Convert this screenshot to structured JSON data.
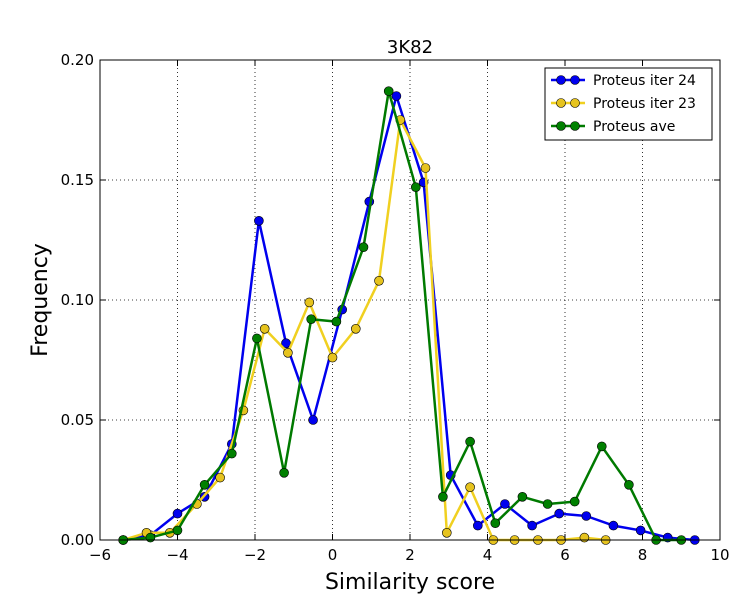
{
  "chart_data": {
    "type": "line",
    "title": "3K82",
    "xlabel": "Similarity score",
    "ylabel": "Frequency",
    "xlim": [
      -6,
      10
    ],
    "ylim": [
      0,
      0.2
    ],
    "xticks": [
      -6,
      -4,
      -2,
      0,
      2,
      4,
      6,
      8,
      10
    ],
    "xtick_labels": [
      "−6",
      "−4",
      "−2",
      "0",
      "2",
      "4",
      "6",
      "8",
      "10"
    ],
    "yticks": [
      0,
      0.05,
      0.1,
      0.15,
      0.2
    ],
    "ytick_labels": [
      "0.00",
      "0.05",
      "0.10",
      "0.15",
      "0.20"
    ],
    "grid": true,
    "legend_position": "top-right",
    "series": [
      {
        "name": "Proteus iter 24",
        "color": "#0000ee",
        "marker_color": "#0000ee",
        "x": [
          -5.4,
          -4.7,
          -4.0,
          -3.3,
          -2.6,
          -1.9,
          -1.2,
          -0.5,
          0.25,
          0.95,
          1.65,
          2.35,
          3.05,
          3.75,
          4.45,
          5.15,
          5.85,
          6.55,
          7.25,
          7.95,
          8.65,
          9.35
        ],
        "y": [
          0.0,
          0.002,
          0.011,
          0.018,
          0.04,
          0.133,
          0.082,
          0.05,
          0.096,
          0.141,
          0.185,
          0.149,
          0.027,
          0.006,
          0.015,
          0.006,
          0.011,
          0.01,
          0.006,
          0.004,
          0.001,
          0.0
        ]
      },
      {
        "name": "Proteus iter 23",
        "color": "#f0d020",
        "marker_color": "#e6c31e",
        "x": [
          -5.4,
          -4.8,
          -4.2,
          -3.5,
          -2.9,
          -2.3,
          -1.75,
          -1.15,
          -0.6,
          0.0,
          0.6,
          1.2,
          1.75,
          2.4,
          2.95,
          3.55,
          4.15,
          4.7,
          5.3,
          5.9,
          6.5,
          7.05
        ],
        "y": [
          0.0,
          0.003,
          0.003,
          0.015,
          0.026,
          0.054,
          0.088,
          0.078,
          0.099,
          0.076,
          0.088,
          0.108,
          0.175,
          0.155,
          0.003,
          0.022,
          0.0,
          0.0,
          0.0,
          0.0,
          0.001,
          0.0
        ]
      },
      {
        "name": "Proteus ave",
        "color": "#007a00",
        "marker_color": "#008000",
        "x": [
          -5.4,
          -4.7,
          -4.0,
          -3.3,
          -2.6,
          -1.95,
          -1.25,
          -0.55,
          0.1,
          0.8,
          1.45,
          2.15,
          2.85,
          3.55,
          4.2,
          4.9,
          5.55,
          6.25,
          6.95,
          7.65,
          8.35,
          9.0
        ],
        "y": [
          0.0,
          0.001,
          0.004,
          0.023,
          0.036,
          0.084,
          0.028,
          0.092,
          0.091,
          0.122,
          0.187,
          0.147,
          0.018,
          0.041,
          0.007,
          0.018,
          0.015,
          0.016,
          0.039,
          0.023,
          0.0,
          0.0
        ]
      }
    ]
  }
}
